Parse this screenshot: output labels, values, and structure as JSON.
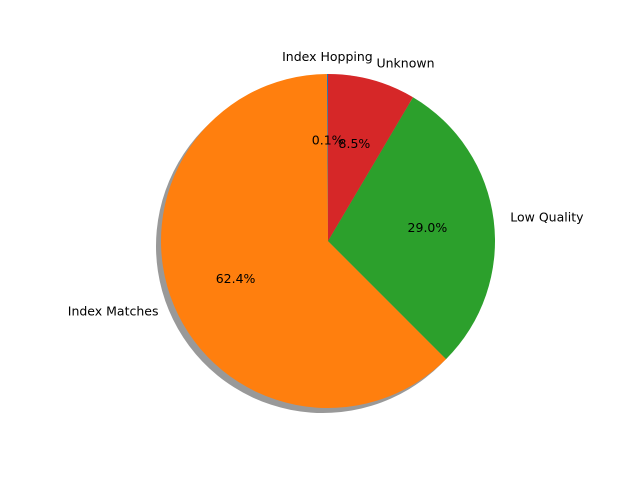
{
  "chart_data": {
    "type": "pie",
    "title": "",
    "slices": [
      {
        "label": "Index Hopping",
        "value": 0.1,
        "pct_label": "0.1%",
        "color": "#1f77b4"
      },
      {
        "label": "Index Matches",
        "value": 62.4,
        "pct_label": "62.4%",
        "color": "#ff7f0e"
      },
      {
        "label": "Low Quality",
        "value": 29.0,
        "pct_label": "29.0%",
        "color": "#2ca02c"
      },
      {
        "label": "Unknown",
        "value": 8.5,
        "pct_label": "8.5%",
        "color": "#d62728"
      }
    ],
    "start_angle_deg": 90,
    "direction": "counterclockwise",
    "shadow": true,
    "legend": "none"
  }
}
